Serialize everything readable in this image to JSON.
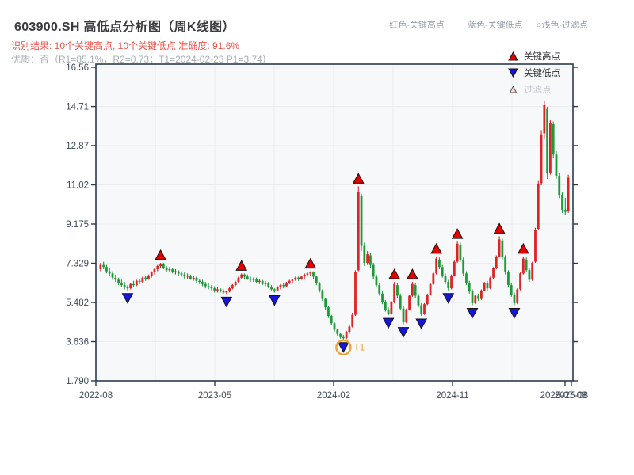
{
  "page": {
    "title": "603900.SH 高低点分析图（周K线图）",
    "result_line": "识别结果: 10个关键高点, 10个关键低点  准确度: 91.6%",
    "quality_line": "优质：否（R1=85.1%，R2=0.73；T1=2024-02-23 P1=3.74）"
  },
  "analysis": {
    "key_high_count": 10,
    "key_low_count": 10,
    "accuracy": "91.6%",
    "premium": "否",
    "R1": "85.1%",
    "R2": "0.73",
    "T1": "2024-02-23",
    "P1": "3.74"
  },
  "header_legend": {
    "high": "红色-关键高点",
    "low": "蓝色-关键低点",
    "filtered": "○浅色-过滤点"
  },
  "legend_box": {
    "items": [
      {
        "label": "关键高点",
        "type": "key-high"
      },
      {
        "label": "关键低点",
        "type": "key-low"
      },
      {
        "label": "过滤点",
        "type": "filtered"
      }
    ]
  },
  "chart_data": {
    "type": "candlestick",
    "symbol": "603900.SH",
    "period": "weekly",
    "title": "603900.SH 高低点分析图（周K线图）",
    "y_tick_labels": [
      "16.56",
      "14.71",
      "12.87",
      "11.02",
      "9.175",
      "7.329",
      "5.482",
      "3.636",
      "1.790"
    ],
    "y_ticks": [
      16.56,
      14.71,
      12.87,
      11.02,
      9.175,
      7.329,
      5.482,
      3.636,
      1.79
    ],
    "ylim": [
      1.79,
      16.9
    ],
    "x_tick_labels": [
      "2022-08",
      "2023-05",
      "2024-02",
      "2024-11",
      "2025-08"
    ],
    "x_end_label": "2025-07-08",
    "grid": true,
    "candles": [
      [
        7.05,
        7.35,
        6.95,
        7.25
      ],
      [
        7.25,
        7.4,
        7.05,
        7.15
      ],
      [
        7.15,
        7.25,
        6.85,
        6.95
      ],
      [
        6.95,
        7.1,
        6.75,
        6.85
      ],
      [
        6.85,
        6.95,
        6.55,
        6.65
      ],
      [
        6.65,
        6.8,
        6.45,
        6.55
      ],
      [
        6.55,
        6.65,
        6.3,
        6.4
      ],
      [
        6.4,
        6.55,
        6.2,
        6.3
      ],
      [
        6.3,
        6.45,
        6.1,
        6.2
      ],
      [
        6.2,
        6.3,
        6.05,
        6.15
      ],
      [
        6.15,
        6.4,
        6.1,
        6.35
      ],
      [
        6.35,
        6.5,
        6.2,
        6.3
      ],
      [
        6.3,
        6.55,
        6.25,
        6.5
      ],
      [
        6.5,
        6.6,
        6.35,
        6.45
      ],
      [
        6.45,
        6.7,
        6.4,
        6.65
      ],
      [
        6.65,
        6.75,
        6.5,
        6.6
      ],
      [
        6.6,
        6.8,
        6.55,
        6.75
      ],
      [
        6.75,
        6.95,
        6.65,
        6.9
      ],
      [
        6.9,
        7.1,
        6.8,
        7.05
      ],
      [
        7.05,
        7.25,
        6.95,
        7.2
      ],
      [
        7.2,
        7.35,
        7.1,
        7.3
      ],
      [
        7.3,
        7.35,
        7.05,
        7.1
      ],
      [
        7.1,
        7.2,
        6.9,
        7.0
      ],
      [
        7.0,
        7.15,
        6.9,
        7.05
      ],
      [
        7.05,
        7.1,
        6.85,
        6.9
      ],
      [
        6.9,
        7.05,
        6.8,
        6.95
      ],
      [
        6.95,
        7.0,
        6.75,
        6.85
      ],
      [
        6.85,
        6.95,
        6.7,
        6.8
      ],
      [
        6.8,
        6.9,
        6.6,
        6.7
      ],
      [
        6.7,
        6.85,
        6.6,
        6.75
      ],
      [
        6.75,
        6.8,
        6.55,
        6.6
      ],
      [
        6.6,
        6.75,
        6.5,
        6.65
      ],
      [
        6.65,
        6.7,
        6.4,
        6.5
      ],
      [
        6.5,
        6.6,
        6.35,
        6.45
      ],
      [
        6.45,
        6.55,
        6.25,
        6.35
      ],
      [
        6.35,
        6.45,
        6.15,
        6.25
      ],
      [
        6.25,
        6.4,
        6.1,
        6.2
      ],
      [
        6.2,
        6.3,
        6.05,
        6.15
      ],
      [
        6.15,
        6.25,
        5.95,
        6.05
      ],
      [
        6.05,
        6.2,
        5.95,
        6.1
      ],
      [
        6.1,
        6.15,
        5.95,
        6.0
      ],
      [
        6.0,
        6.1,
        5.9,
        5.95
      ],
      [
        5.95,
        6.05,
        5.88,
        6.0
      ],
      [
        6.0,
        6.2,
        5.95,
        6.15
      ],
      [
        6.15,
        6.35,
        6.1,
        6.3
      ],
      [
        6.3,
        6.5,
        6.25,
        6.45
      ],
      [
        6.45,
        6.7,
        6.4,
        6.65
      ],
      [
        6.65,
        6.85,
        6.6,
        6.8
      ],
      [
        6.8,
        6.85,
        6.6,
        6.7
      ],
      [
        6.7,
        6.8,
        6.55,
        6.6
      ],
      [
        6.6,
        6.7,
        6.45,
        6.55
      ],
      [
        6.55,
        6.65,
        6.45,
        6.6
      ],
      [
        6.6,
        6.65,
        6.4,
        6.45
      ],
      [
        6.45,
        6.6,
        6.35,
        6.5
      ],
      [
        6.5,
        6.55,
        6.3,
        6.35
      ],
      [
        6.35,
        6.5,
        6.25,
        6.4
      ],
      [
        6.4,
        6.45,
        6.15,
        6.2
      ],
      [
        6.2,
        6.3,
        6.05,
        6.1
      ],
      [
        6.1,
        6.15,
        5.95,
        6.05
      ],
      [
        6.05,
        6.25,
        6.0,
        6.2
      ],
      [
        6.2,
        6.35,
        6.1,
        6.3
      ],
      [
        6.3,
        6.4,
        6.15,
        6.25
      ],
      [
        6.25,
        6.45,
        6.2,
        6.4
      ],
      [
        6.4,
        6.55,
        6.35,
        6.5
      ],
      [
        6.5,
        6.6,
        6.4,
        6.55
      ],
      [
        6.55,
        6.7,
        6.5,
        6.65
      ],
      [
        6.65,
        6.7,
        6.5,
        6.6
      ],
      [
        6.6,
        6.75,
        6.55,
        6.7
      ],
      [
        6.7,
        6.85,
        6.6,
        6.8
      ],
      [
        6.8,
        6.9,
        6.7,
        6.85
      ],
      [
        6.85,
        6.95,
        6.75,
        6.9
      ],
      [
        6.9,
        6.95,
        6.6,
        6.7
      ],
      [
        6.7,
        6.75,
        6.3,
        6.4
      ],
      [
        6.4,
        6.45,
        5.95,
        6.05
      ],
      [
        6.05,
        6.1,
        5.55,
        5.65
      ],
      [
        5.65,
        5.7,
        5.15,
        5.25
      ],
      [
        5.25,
        5.3,
        4.75,
        4.85
      ],
      [
        4.85,
        4.9,
        4.4,
        4.5
      ],
      [
        4.5,
        4.55,
        4.1,
        4.2
      ],
      [
        4.2,
        4.25,
        3.9,
        4.0
      ],
      [
        4.0,
        4.05,
        3.78,
        3.85
      ],
      [
        3.85,
        3.95,
        3.74,
        3.8
      ],
      [
        3.8,
        4.15,
        3.75,
        4.1
      ],
      [
        4.1,
        4.45,
        4.0,
        4.35
      ],
      [
        4.35,
        5.0,
        4.3,
        4.9
      ],
      [
        4.9,
        7.0,
        4.85,
        6.9
      ],
      [
        7.0,
        10.95,
        6.95,
        10.7
      ],
      [
        10.5,
        10.6,
        7.9,
        8.15
      ],
      [
        8.15,
        8.3,
        7.2,
        7.35
      ],
      [
        7.35,
        7.9,
        7.25,
        7.75
      ],
      [
        7.7,
        7.8,
        7.1,
        7.25
      ],
      [
        7.25,
        7.35,
        6.6,
        6.7
      ],
      [
        6.7,
        6.8,
        6.2,
        6.3
      ],
      [
        6.3,
        6.4,
        5.8,
        5.9
      ],
      [
        5.9,
        6.0,
        5.4,
        5.5
      ],
      [
        5.5,
        5.6,
        5.05,
        5.15
      ],
      [
        5.15,
        5.25,
        4.88,
        4.95
      ],
      [
        4.95,
        5.55,
        4.9,
        5.5
      ],
      [
        5.5,
        6.45,
        5.45,
        6.35
      ],
      [
        6.3,
        6.4,
        5.7,
        5.8
      ],
      [
        5.8,
        5.9,
        5.1,
        5.2
      ],
      [
        5.2,
        5.3,
        4.45,
        4.55
      ],
      [
        4.55,
        5.2,
        4.5,
        5.15
      ],
      [
        5.15,
        5.85,
        5.1,
        5.8
      ],
      [
        5.8,
        6.45,
        5.75,
        6.35
      ],
      [
        6.3,
        6.4,
        5.7,
        5.8
      ],
      [
        5.8,
        5.9,
        5.25,
        5.35
      ],
      [
        5.35,
        5.45,
        4.85,
        4.95
      ],
      [
        4.95,
        5.45,
        4.9,
        5.4
      ],
      [
        5.4,
        5.9,
        5.35,
        5.85
      ],
      [
        5.85,
        6.4,
        5.8,
        6.35
      ],
      [
        6.35,
        6.9,
        6.3,
        6.85
      ],
      [
        6.85,
        7.65,
        6.8,
        7.55
      ],
      [
        7.5,
        7.6,
        7.05,
        7.15
      ],
      [
        7.15,
        7.25,
        6.65,
        6.75
      ],
      [
        6.75,
        6.85,
        6.35,
        6.45
      ],
      [
        6.45,
        6.55,
        6.05,
        6.15
      ],
      [
        6.15,
        6.8,
        6.1,
        6.75
      ],
      [
        6.75,
        7.45,
        6.7,
        7.4
      ],
      [
        7.4,
        8.35,
        7.35,
        8.25
      ],
      [
        8.2,
        8.3,
        7.4,
        7.5
      ],
      [
        7.5,
        7.6,
        6.75,
        6.85
      ],
      [
        6.85,
        6.95,
        6.3,
        6.4
      ],
      [
        6.4,
        6.5,
        5.9,
        6.0
      ],
      [
        6.0,
        6.1,
        5.35,
        5.45
      ],
      [
        5.45,
        5.85,
        5.4,
        5.8
      ],
      [
        5.8,
        5.9,
        5.55,
        5.65
      ],
      [
        5.65,
        6.1,
        5.6,
        6.05
      ],
      [
        6.05,
        6.45,
        6.0,
        6.4
      ],
      [
        6.4,
        6.5,
        6.05,
        6.15
      ],
      [
        6.15,
        6.7,
        6.1,
        6.65
      ],
      [
        6.65,
        7.15,
        6.6,
        7.1
      ],
      [
        7.1,
        7.7,
        7.05,
        7.65
      ],
      [
        7.65,
        8.6,
        7.6,
        8.45
      ],
      [
        8.4,
        8.5,
        7.5,
        7.6
      ],
      [
        7.6,
        7.7,
        6.8,
        6.9
      ],
      [
        6.9,
        7.0,
        6.2,
        6.3
      ],
      [
        6.3,
        6.4,
        5.75,
        5.85
      ],
      [
        5.85,
        5.95,
        5.35,
        5.45
      ],
      [
        5.45,
        6.15,
        5.4,
        6.1
      ],
      [
        6.1,
        6.9,
        6.05,
        6.85
      ],
      [
        6.85,
        7.65,
        6.8,
        7.55
      ],
      [
        7.5,
        7.6,
        6.9,
        7.0
      ],
      [
        7.0,
        7.1,
        6.45,
        6.55
      ],
      [
        6.55,
        7.4,
        6.5,
        7.35
      ],
      [
        7.4,
        9.0,
        7.35,
        8.9
      ],
      [
        8.95,
        11.2,
        8.9,
        11.05
      ],
      [
        11.1,
        13.6,
        11.0,
        13.4
      ],
      [
        13.45,
        15.0,
        13.2,
        14.8
      ],
      [
        14.6,
        14.7,
        11.3,
        11.55
      ],
      [
        11.6,
        14.1,
        11.5,
        13.95
      ],
      [
        13.9,
        14.0,
        12.3,
        12.45
      ],
      [
        12.45,
        12.6,
        11.3,
        11.45
      ],
      [
        11.45,
        11.6,
        10.4,
        10.55
      ],
      [
        10.55,
        10.7,
        9.7,
        9.85
      ],
      [
        9.85,
        10.4,
        9.6,
        9.75
      ],
      [
        9.8,
        11.5,
        9.7,
        11.35
      ]
    ],
    "key_highs": [
      {
        "i": 20,
        "price": 7.35
      },
      {
        "i": 47,
        "price": 6.85
      },
      {
        "i": 70,
        "price": 6.95
      },
      {
        "i": 86,
        "price": 10.95
      },
      {
        "i": 98,
        "price": 6.45
      },
      {
        "i": 104,
        "price": 6.45
      },
      {
        "i": 112,
        "price": 7.65
      },
      {
        "i": 119,
        "price": 8.35
      },
      {
        "i": 133,
        "price": 8.6
      },
      {
        "i": 141,
        "price": 7.65
      }
    ],
    "key_lows": [
      {
        "i": 9,
        "price": 6.05
      },
      {
        "i": 42,
        "price": 5.88
      },
      {
        "i": 58,
        "price": 5.95
      },
      {
        "i": 81,
        "price": 3.74
      },
      {
        "i": 96,
        "price": 4.88
      },
      {
        "i": 101,
        "price": 4.45
      },
      {
        "i": 107,
        "price": 4.85
      },
      {
        "i": 116,
        "price": 6.05
      },
      {
        "i": 124,
        "price": 5.35
      },
      {
        "i": 138,
        "price": 5.35
      }
    ],
    "t1": {
      "i": 81,
      "label": "T1",
      "price": 3.74,
      "date": "2024-02-23"
    },
    "colors": {
      "up": "#dd2424",
      "down": "#1c9a38",
      "key_high": "#e60000",
      "key_low": "#1616dd",
      "filtered_fill": "#f8d7d5",
      "t1_ring": "#f0a43c",
      "grid": "#e9ebef",
      "spine": "#2c3a4e",
      "tick_text": "#3e4a58",
      "plot_bg": "#f7f8fa"
    }
  }
}
